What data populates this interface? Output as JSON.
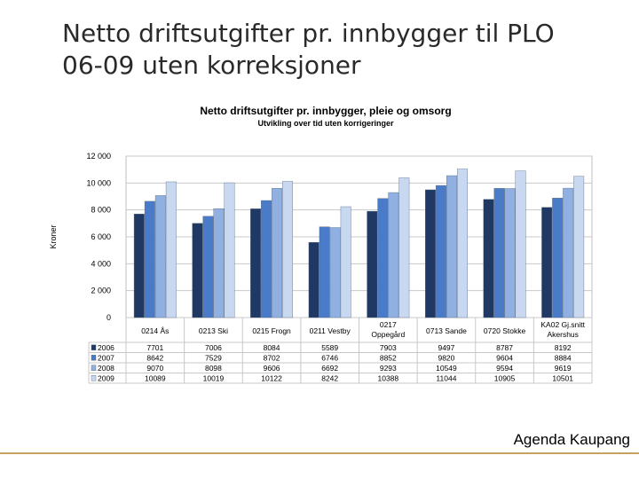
{
  "slide": {
    "title_line1": "Netto driftsutgifter pr. innbygger til PLO",
    "title_line2": "06-09 uten korreksjoner",
    "footer": "Agenda Kaupang"
  },
  "colors": {
    "series": [
      "#1f3864",
      "#4a7bc8",
      "#8fb0e0",
      "#c7d8f0"
    ],
    "footer_line": "#c8a060"
  },
  "chart_data": {
    "type": "bar",
    "title": "Netto driftsutgifter pr. innbygger, pleie og omsorg",
    "subtitle": "Utvikling over tid uten korrigeringer",
    "xlabel": "",
    "ylabel": "Kroner",
    "ylim": [
      0,
      12000
    ],
    "yticks": [
      0,
      2000,
      4000,
      6000,
      8000,
      10000,
      12000
    ],
    "ytick_labels": [
      "0",
      "2 000",
      "4 000",
      "6 000",
      "8 000",
      "10 000",
      "12 000"
    ],
    "grid": true,
    "legend": "data-table-left",
    "categories": [
      [
        "0214 Ås"
      ],
      [
        "0213 Ski"
      ],
      [
        "0215 Frogn"
      ],
      [
        "0211 Vestby"
      ],
      [
        "0217",
        "Oppegård"
      ],
      [
        "0713 Sande"
      ],
      [
        "0720 Stokke"
      ],
      [
        "KA02 Gj.snitt",
        "Akershus"
      ]
    ],
    "series": [
      {
        "name": "2006",
        "values": [
          7701,
          7006,
          8084,
          5589,
          7903,
          9497,
          8787,
          8192
        ]
      },
      {
        "name": "2007",
        "values": [
          8642,
          7529,
          8702,
          6746,
          8852,
          9820,
          9604,
          8884
        ]
      },
      {
        "name": "2008",
        "values": [
          9070,
          8098,
          9606,
          6692,
          9293,
          10549,
          9594,
          9619
        ]
      },
      {
        "name": "2009",
        "values": [
          10089,
          10019,
          10122,
          8242,
          10388,
          11044,
          10905,
          10501
        ]
      }
    ]
  }
}
